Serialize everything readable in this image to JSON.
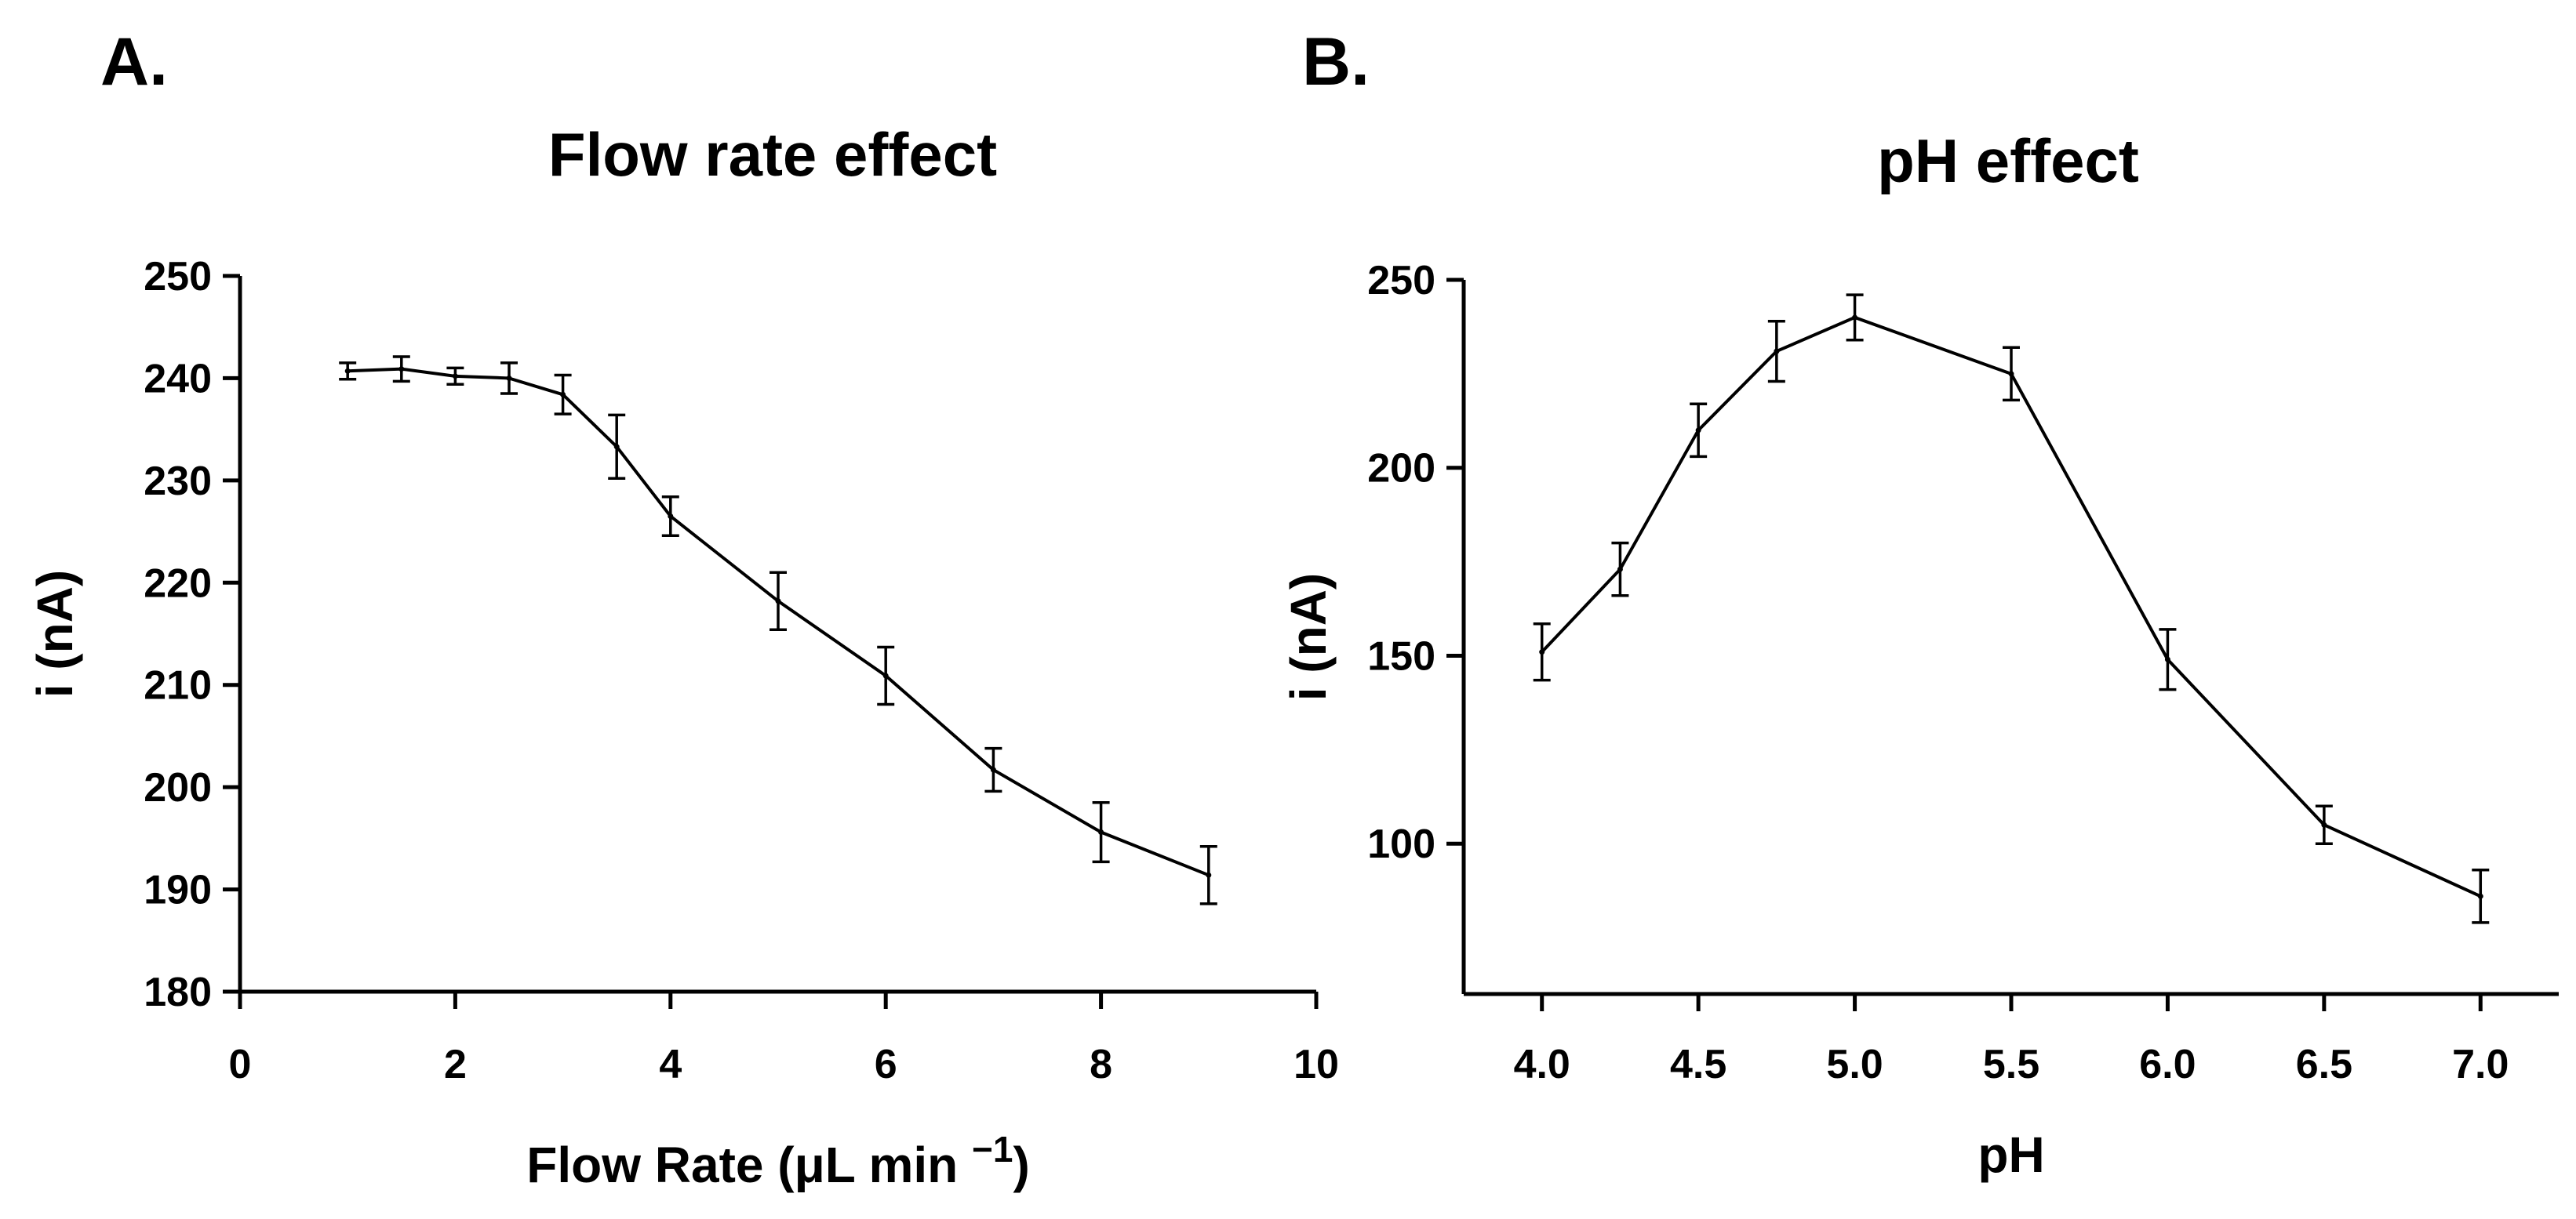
{
  "chart_data": [
    {
      "panel": "A.",
      "type": "line",
      "title": "Flow rate effect",
      "xlabel": "Flow Rate (μL min",
      "xlabel_sup": "−1",
      "xlabel_end": ")",
      "ylabel": "i (nA)",
      "xlim": [
        0,
        10
      ],
      "ylim": [
        180,
        250
      ],
      "xticks": [
        0,
        2,
        4,
        6,
        8,
        10
      ],
      "yticks": [
        180,
        190,
        200,
        210,
        220,
        230,
        240,
        250
      ],
      "x": [
        1,
        1.5,
        2,
        2.5,
        3,
        3.5,
        4,
        5,
        6,
        7,
        8,
        9
      ],
      "y": [
        240.7,
        240.9,
        240.2,
        240.0,
        238.4,
        233.3,
        226.5,
        218.2,
        210.9,
        201.7,
        195.6,
        191.4
      ],
      "err": [
        0.8,
        1.2,
        0.8,
        1.5,
        1.9,
        3.1,
        1.9,
        2.8,
        2.8,
        2.1,
        2.9,
        2.8
      ]
    },
    {
      "panel": "B.",
      "type": "line",
      "title": "pH effect",
      "xlabel": "pH",
      "ylabel": "i (nA)",
      "xlim": [
        3.75,
        7.25
      ],
      "ylim": [
        60,
        250
      ],
      "xticks": [
        4.0,
        4.5,
        5.0,
        5.5,
        6.0,
        6.5,
        7.0
      ],
      "xtick_labels": [
        "4.0",
        "4.5",
        "5.0",
        "5.5",
        "6.0",
        "6.5",
        "7.0"
      ],
      "yticks": [
        100,
        150,
        200,
        250
      ],
      "x": [
        4.0,
        4.25,
        4.5,
        4.75,
        5.0,
        5.5,
        6.0,
        6.5,
        7.0
      ],
      "y": [
        151,
        173,
        210,
        231,
        240,
        225,
        149,
        105,
        86
      ],
      "err": [
        7.5,
        7,
        7,
        8,
        6,
        7,
        8,
        5,
        7
      ]
    }
  ]
}
